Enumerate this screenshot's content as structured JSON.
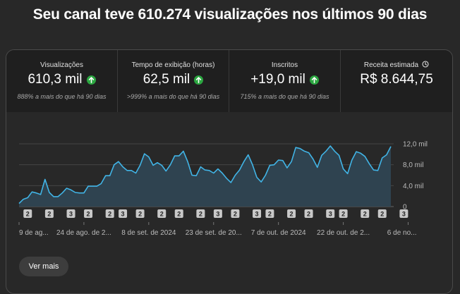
{
  "headline": "Seu canal teve 610.274 visualizações nos últimos 90 dias",
  "tabs": [
    {
      "label": "Visualizações",
      "value": "610,3 mil",
      "trend": "up",
      "comparison": "888% a mais do que há 90 dias"
    },
    {
      "label": "Tempo de exibição (horas)",
      "value": "62,5 mil",
      "trend": "up",
      "comparison": ">999% a mais do que há 90 dias"
    },
    {
      "label": "Inscritos",
      "value": "+19,0 mil",
      "trend": "up",
      "comparison": "715% a mais do que há 90 dias"
    },
    {
      "label": "Receita estimada",
      "value": "R$ 8.644,75",
      "icon": "clock-icon"
    }
  ],
  "colors": {
    "accent_line": "#41b4e6",
    "up_badge": "#2ba640"
  },
  "chart_data": {
    "type": "area",
    "ylim": [
      0,
      12000
    ],
    "ytick_labels": [
      "12,0 mil",
      "8,0 mil",
      "4,0 mil",
      "0"
    ],
    "yticks": [
      12000,
      8000,
      4000,
      0
    ],
    "xtick_labels": [
      "9 de ag...",
      "24 de ago. de 2...",
      "8 de set. de 2024",
      "23 de set. de 20...",
      "7 de out. de 2024",
      "22 de out. de 2...",
      "6 de no..."
    ],
    "xtick_index": [
      0,
      15,
      30,
      45,
      60,
      75,
      90
    ],
    "values": [
      600,
      1400,
      1700,
      2800,
      2600,
      2300,
      5200,
      2700,
      1900,
      1900,
      2600,
      3500,
      3200,
      2700,
      2600,
      2600,
      3900,
      3900,
      3900,
      4400,
      5900,
      5900,
      8000,
      8600,
      7600,
      6900,
      6900,
      6400,
      7900,
      10100,
      9500,
      7900,
      8400,
      7900,
      6800,
      8000,
      9700,
      9700,
      10600,
      8600,
      6000,
      5900,
      7600,
      7000,
      6900,
      6400,
      7200,
      6400,
      5400,
      4600,
      6000,
      7000,
      8600,
      9900,
      8000,
      5600,
      4700,
      6000,
      7900,
      8000,
      8900,
      8800,
      7400,
      8600,
      11300,
      11100,
      10600,
      10300,
      9100,
      7500,
      9800,
      10600,
      11600,
      10600,
      9800,
      7200,
      6300,
      8900,
      10500,
      10200,
      9600,
      8200,
      7000,
      6900,
      9300,
      9900,
      11500
    ],
    "markers": [
      {
        "label": "2",
        "index": 2
      },
      {
        "label": "2",
        "index": 7
      },
      {
        "label": "3",
        "index": 12
      },
      {
        "label": "2",
        "index": 16
      },
      {
        "label": "2",
        "index": 21
      },
      {
        "label": "3",
        "index": 24
      },
      {
        "label": "2",
        "index": 28
      },
      {
        "label": "2",
        "index": 33
      },
      {
        "label": "2",
        "index": 37
      },
      {
        "label": "2",
        "index": 42
      },
      {
        "label": "3",
        "index": 46
      },
      {
        "label": "2",
        "index": 50
      },
      {
        "label": "3",
        "index": 55
      },
      {
        "label": "2",
        "index": 58
      },
      {
        "label": "2",
        "index": 63
      },
      {
        "label": "2",
        "index": 67
      },
      {
        "label": "3",
        "index": 72
      },
      {
        "label": "2",
        "index": 75
      },
      {
        "label": "2",
        "index": 80
      },
      {
        "label": "2",
        "index": 84
      },
      {
        "label": "3",
        "index": 89
      }
    ]
  },
  "more_button": "Ver mais"
}
